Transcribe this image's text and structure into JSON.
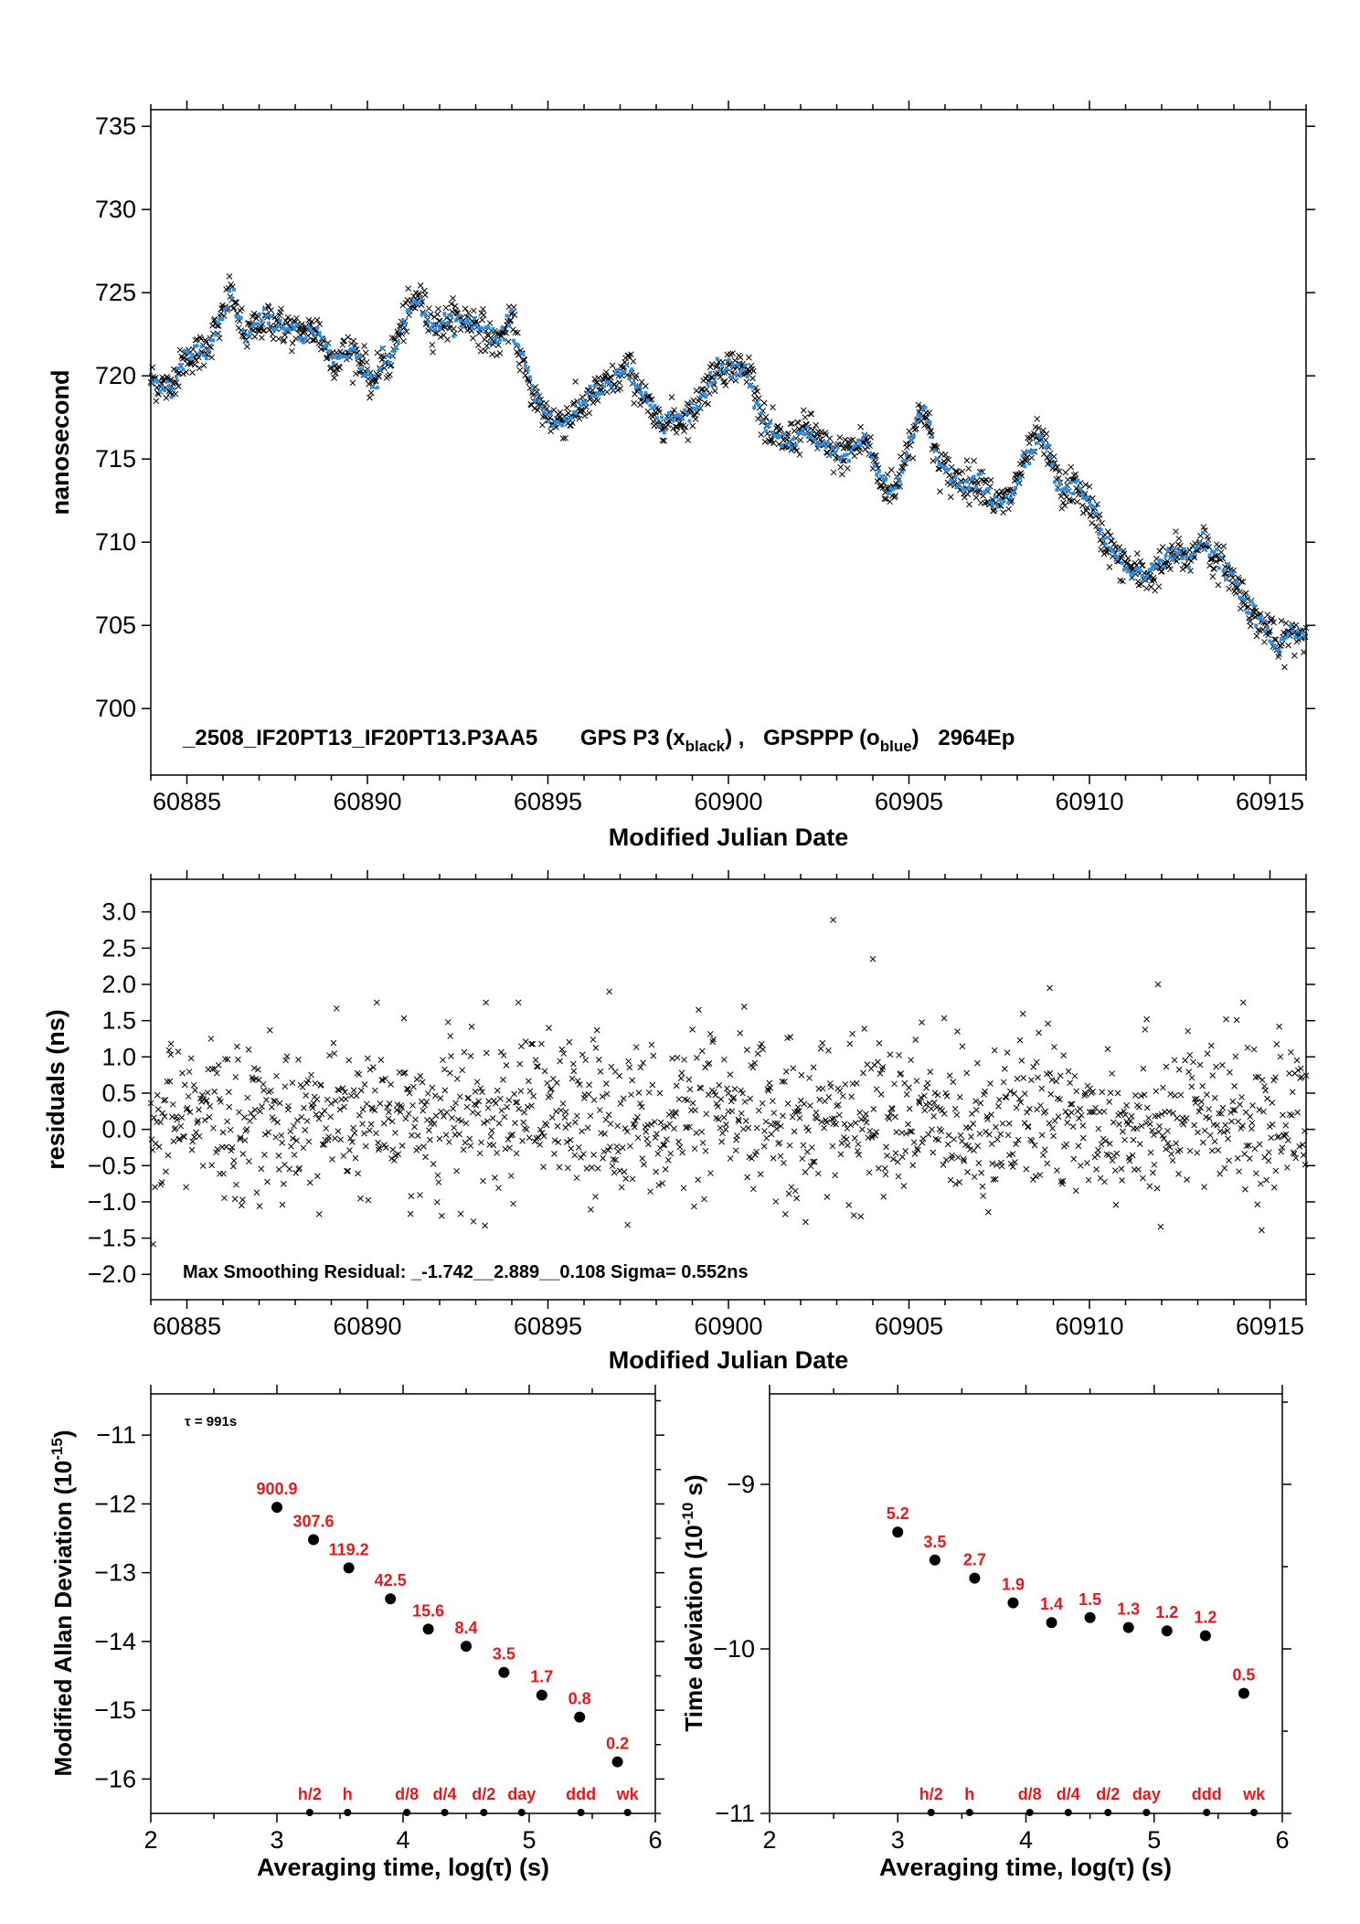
{
  "colors": {
    "black": "#000000",
    "blue": "#2b8fe6",
    "red": "#e8171c"
  },
  "chart_data": [
    {
      "type": "scatter",
      "ylabel": "nanosecond",
      "xlabel": "Modified Julian Date",
      "xlim": [
        60884,
        60916
      ],
      "ylim": [
        696,
        736
      ],
      "xticks": [
        60885,
        60890,
        60895,
        60900,
        60905,
        60910,
        60915
      ],
      "yticks": [
        700,
        705,
        710,
        715,
        720,
        725,
        730,
        735
      ],
      "annotation": {
        "file": "_2508_IF20PT13_IF20PT13.P3AA5",
        "gps_p3": "GPS P3 (x",
        "black_sub": "black",
        "sep": ") ,",
        "gpsppp": "GPSPPP (o",
        "blue_sub": "blue",
        "close": ")",
        "epochs": "2964Ep"
      },
      "series_trend": {
        "x": [
          60884.0,
          60884.5,
          60885.0,
          60885.5,
          60886.0,
          60886.2,
          60886.6,
          60887.2,
          60887.6,
          60888.2,
          60888.6,
          60889.0,
          60889.6,
          60890.0,
          60890.2,
          60890.4,
          60890.6,
          60891.0,
          60891.4,
          60891.8,
          60892.4,
          60893.0,
          60893.6,
          60894.0,
          60894.2,
          60894.5,
          60894.8,
          60895.2,
          60895.6,
          60896.2,
          60896.8,
          60897.2,
          60897.6,
          60898.0,
          60898.5,
          60899.0,
          60899.5,
          60899.8,
          60900.2,
          60900.6,
          60901.0,
          60901.2,
          60901.6,
          60902.2,
          60902.8,
          60903.2,
          60903.8,
          60904.2,
          60904.6,
          60905.0,
          60905.4,
          60905.8,
          60906.2,
          60906.6,
          60907.0,
          60907.4,
          60907.8,
          60908.2,
          60908.6,
          60908.9,
          60909.2,
          60909.6,
          60910.0,
          60910.4,
          60910.8,
          60911.2,
          60911.6,
          60912.0,
          60912.4,
          60912.8,
          60913.1,
          60913.4,
          60913.8,
          60914.2,
          60914.6,
          60915.0,
          60915.2,
          60915.5,
          60916.0
        ],
        "y": [
          719.8,
          719.2,
          721.2,
          721.5,
          723.5,
          725.2,
          722.3,
          723.5,
          723.0,
          722.5,
          722.8,
          721.0,
          721.5,
          720.3,
          719.2,
          721.0,
          720.8,
          723.2,
          724.8,
          723.0,
          723.4,
          723.2,
          722.0,
          723.4,
          721.5,
          719.5,
          718.0,
          717.2,
          717.5,
          718.8,
          719.6,
          720.5,
          719.0,
          717.3,
          717.4,
          717.8,
          719.8,
          720.6,
          720.5,
          720.2,
          717.0,
          716.4,
          716.0,
          716.8,
          715.4,
          715.2,
          716.2,
          713.8,
          713.0,
          716.0,
          718.2,
          714.8,
          713.8,
          713.6,
          713.8,
          712.2,
          712.6,
          714.8,
          716.3,
          715.2,
          713.0,
          713.4,
          712.4,
          710.2,
          709.0,
          708.2,
          708.0,
          708.6,
          709.4,
          708.9,
          710.4,
          709.2,
          708.4,
          707.0,
          705.5,
          704.6,
          703.4,
          704.5,
          704.5
        ]
      }
    },
    {
      "type": "scatter",
      "ylabel": "residuals (ns)",
      "xlabel": "Modified Julian Date",
      "xlim": [
        60884,
        60916
      ],
      "ylim": [
        -2.35,
        3.45
      ],
      "xticks": [
        60885,
        60890,
        60895,
        60900,
        60905,
        60910,
        60915
      ],
      "yticks": [
        -2.0,
        -1.5,
        -1.0,
        -0.5,
        0.0,
        0.5,
        1.0,
        1.5,
        2.0,
        2.5,
        3.0,
        3.5
      ],
      "annotation": "Max Smoothing Residual: _-1.742__2.889__0.108  Sigma= 0.552ns",
      "outliers": {
        "x": [
          60902.9,
          60904.0,
          60911.9,
          60896.7,
          60908.9
        ],
        "y": [
          2.889,
          2.35,
          2.0,
          1.9,
          1.95
        ]
      },
      "sigma": 0.552
    },
    {
      "type": "scatter",
      "ylabel": "Modified Allan Deviation (10",
      "ylabel_sup": "-15",
      "ylabel_tail": ")",
      "xlabel": "Averaging time, log(τ) (s)",
      "xlim": [
        2,
        6
      ],
      "ylim": [
        -16.5,
        -10.4
      ],
      "xticks": [
        2,
        3,
        4,
        5,
        6
      ],
      "yticks": [
        -16,
        -15,
        -14,
        -13,
        -12,
        -11
      ],
      "tau_note": "τ = 991s",
      "x": [
        3.0,
        3.29,
        3.57,
        3.9,
        4.2,
        4.5,
        4.8,
        5.1,
        5.4,
        5.7
      ],
      "y": [
        -12.05,
        -12.52,
        -12.93,
        -13.38,
        -13.82,
        -14.07,
        -14.45,
        -14.78,
        -15.1,
        -15.75
      ],
      "point_labels": [
        "900.9",
        "307.6",
        "119.2",
        "42.5",
        "15.6",
        "8.4",
        "3.5",
        "1.7",
        "0.8",
        "0.2"
      ],
      "markers": {
        "labels": [
          "h/2",
          "h",
          "d/8",
          "d/4",
          "d/2",
          "day",
          "ddd",
          "wk"
        ],
        "x": [
          3.26,
          3.56,
          4.03,
          4.33,
          4.64,
          4.94,
          5.41,
          5.78
        ]
      }
    },
    {
      "type": "scatter",
      "ylabel": "Time deviation (10",
      "ylabel_sup": "-10",
      "ylabel_tail": " s)",
      "xlabel": "Averaging time, log(τ) (s)",
      "xlim": [
        2,
        6
      ],
      "ylim": [
        -11.0,
        -8.45
      ],
      "xticks": [
        2,
        3,
        4,
        5,
        6
      ],
      "yticks": [
        -11,
        -10,
        -9
      ],
      "x": [
        3.0,
        3.29,
        3.6,
        3.9,
        4.2,
        4.5,
        4.8,
        5.1,
        5.4,
        5.7
      ],
      "y": [
        -9.29,
        -9.46,
        -9.57,
        -9.72,
        -9.84,
        -9.81,
        -9.87,
        -9.89,
        -9.92,
        -10.27
      ],
      "point_labels": [
        "5.2",
        "3.5",
        "2.7",
        "1.9",
        "1.4",
        "1.5",
        "1.3",
        "1.2",
        "1.2",
        "0.5"
      ],
      "markers": {
        "labels": [
          "h/2",
          "h",
          "d/8",
          "d/4",
          "d/2",
          "day",
          "ddd",
          "wk"
        ],
        "x": [
          3.26,
          3.56,
          4.03,
          4.33,
          4.64,
          4.94,
          5.41,
          5.78
        ]
      }
    }
  ]
}
